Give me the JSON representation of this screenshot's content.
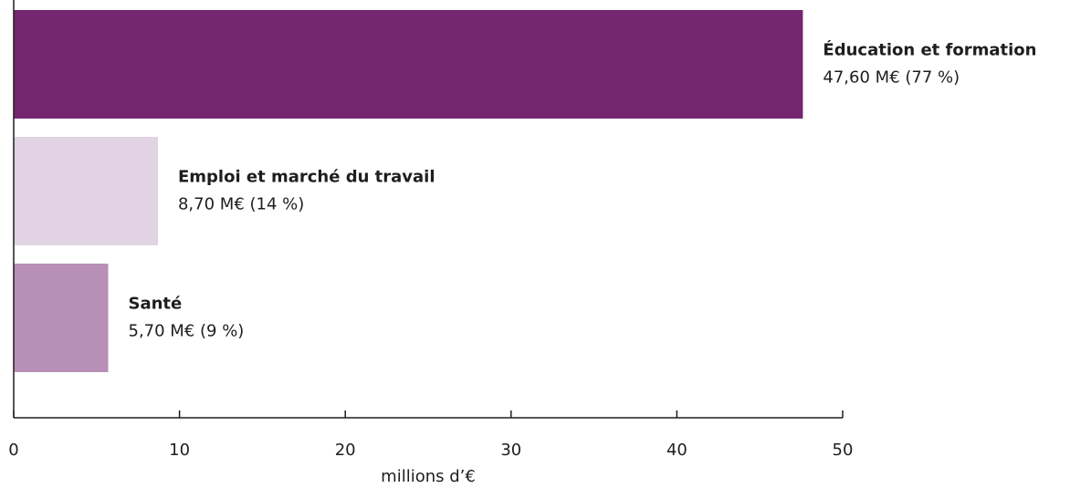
{
  "chart_data": {
    "type": "hbar",
    "categories": [
      "Éducation et formation",
      "Emploi et marché du travail",
      "Santé"
    ],
    "values": [
      47.6,
      8.7,
      5.7
    ],
    "value_labels": [
      "47,60 M€ (77 %)",
      "8,70 M€ (14 %)",
      "5,70 M€ (9 %)"
    ],
    "colors": [
      "#74276f",
      "#e1d3e4",
      "#b78fb7"
    ],
    "xlim": [
      0,
      50
    ],
    "xticks": [
      0,
      10,
      20,
      30,
      40,
      50
    ],
    "xlabel": "millions d’€"
  }
}
